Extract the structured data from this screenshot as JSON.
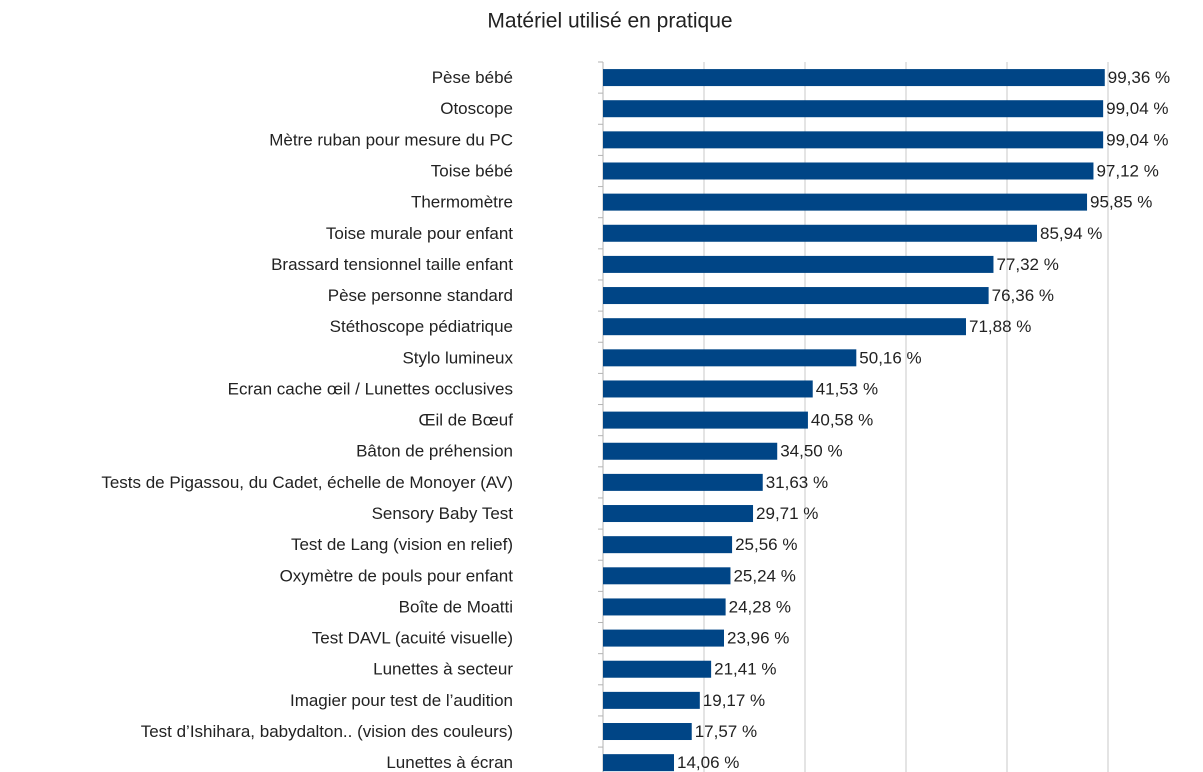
{
  "chart_data": {
    "type": "barh",
    "title": "Matériel utilisé en pratique",
    "categories": [
      "Pèse bébé",
      "Otoscope",
      "Mètre ruban pour mesure du PC",
      "Toise bébé",
      "Thermomètre",
      "Toise murale pour enfant",
      "Brassard tensionnel taille enfant",
      "Pèse personne standard",
      "Stéthoscope pédiatrique",
      "Stylo lumineux",
      "Ecran cache œil / Lunettes occlusives",
      "Œil de Bœuf",
      "Bâton de préhension",
      "Tests de Pigassou, du Cadet, échelle de Monoyer (AV)",
      "Sensory Baby Test",
      "Test de Lang (vision en relief)",
      "Oxymètre de pouls pour enfant",
      "Boîte de Moatti",
      "Test DAVL (acuité visuelle)",
      "Lunettes à secteur",
      "Imagier pour test de l’audition",
      "Test d’Ishihara, babydalton.. (vision des couleurs)",
      "Lunettes à écran"
    ],
    "values": [
      99.36,
      99.04,
      99.04,
      97.12,
      95.85,
      85.94,
      77.32,
      76.36,
      71.88,
      50.16,
      41.53,
      40.58,
      34.5,
      31.63,
      29.71,
      25.56,
      25.24,
      24.28,
      23.96,
      21.41,
      19.17,
      17.57,
      14.06
    ],
    "value_labels": [
      "99,36 %",
      "99,04 %",
      "99,04 %",
      "97,12 %",
      "95,85 %",
      "85,94 %",
      "77,32 %",
      "76,36 %",
      "71,88 %",
      "50,16 %",
      "41,53 %",
      "40,58 %",
      "34,50 %",
      "31,63 %",
      "29,71 %",
      "25,56 %",
      "25,24 %",
      "24,28 %",
      "23,96 %",
      "21,41 %",
      "19,17 %",
      "17,57 %",
      "14,06 %"
    ],
    "color": "#004586",
    "xlim": [
      0,
      100
    ],
    "xticks": [
      0,
      20,
      40,
      60,
      80,
      100
    ],
    "grid": true
  }
}
